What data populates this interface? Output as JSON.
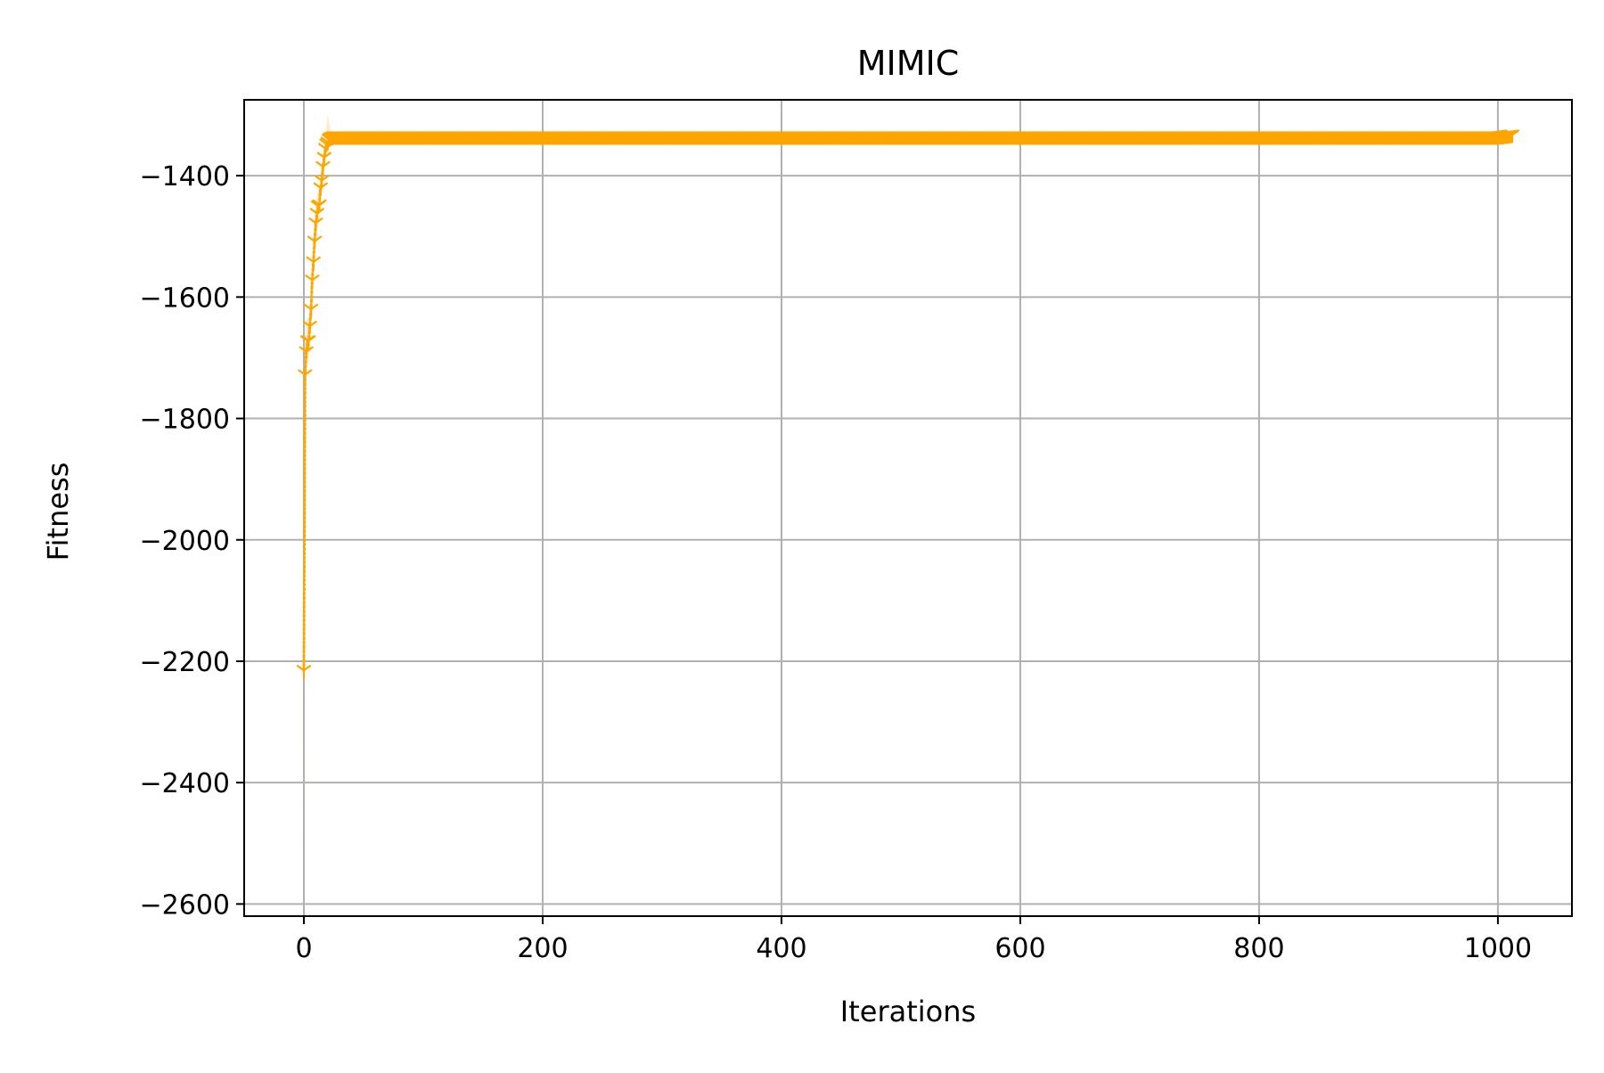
{
  "chart_data": {
    "type": "line",
    "title": "MIMIC",
    "xlabel": "Iterations",
    "ylabel": "Fitness",
    "xlim": [
      -50,
      1062
    ],
    "ylim": [
      -2620,
      -1275
    ],
    "xticks": [
      0,
      200,
      400,
      600,
      800,
      1000
    ],
    "yticks": [
      -2600,
      -2400,
      -2200,
      -2000,
      -1800,
      -1600,
      -1400
    ],
    "xtick_labels": [
      "0",
      "200",
      "400",
      "600",
      "800",
      "1000"
    ],
    "ytick_labels": [
      "−2600",
      "−2400",
      "−2200",
      "−2000",
      "−1800",
      "−1600",
      "−1400"
    ],
    "grid": true,
    "legend": null,
    "colors": {
      "line": "#FFA500",
      "band": "#FFA500",
      "grid": "#b0b0b0",
      "axes": "#000000"
    },
    "series": [
      {
        "marker": "tri_down",
        "linestyle": "dotted",
        "x": [
          0,
          1,
          2,
          3,
          4,
          5,
          6,
          7,
          8,
          9,
          10,
          11,
          12,
          13,
          14,
          15,
          16,
          17,
          18,
          19,
          20,
          21,
          22,
          23,
          24,
          25,
          26,
          27,
          28,
          29,
          30,
          40,
          60,
          100,
          200,
          300,
          400,
          500,
          600,
          700,
          800,
          900,
          1000,
          1012
        ],
        "y": [
          -2215,
          -1728,
          -1690,
          -1672,
          -1672,
          -1648,
          -1620,
          -1572,
          -1542,
          -1508,
          -1478,
          -1462,
          -1450,
          -1448,
          -1420,
          -1408,
          -1385,
          -1370,
          -1355,
          -1348,
          -1345,
          -1340,
          -1338,
          -1337,
          -1337,
          -1336,
          -1336,
          -1336,
          -1336,
          -1336,
          -1336,
          -1336,
          -1336,
          -1336,
          -1336,
          -1336,
          -1336,
          -1336,
          -1336,
          -1336,
          -1336,
          -1336,
          -1336,
          -1333
        ],
        "y_lower": [
          -2600,
          -1790,
          -1740,
          -1710,
          -1705,
          -1680,
          -1650,
          -1605,
          -1575,
          -1540,
          -1510,
          -1492,
          -1478,
          -1472,
          -1442,
          -1428,
          -1404,
          -1388,
          -1370,
          -1360,
          -1356,
          -1350,
          -1346,
          -1344,
          -1342,
          -1340,
          -1339,
          -1338,
          -1337,
          -1337,
          -1336,
          -1336,
          -1336,
          -1336,
          -1336,
          -1336,
          -1336,
          -1336,
          -1336,
          -1336,
          -1336,
          -1336,
          -1336,
          -1333
        ],
        "y_upper": [
          -1830,
          -1666,
          -1640,
          -1634,
          -1640,
          -1616,
          -1590,
          -1540,
          -1510,
          -1476,
          -1446,
          -1432,
          -1422,
          -1424,
          -1398,
          -1388,
          -1366,
          -1352,
          -1330,
          -1318,
          -1300,
          -1310,
          -1322,
          -1328,
          -1330,
          -1332,
          -1333,
          -1334,
          -1335,
          -1335,
          -1336,
          -1336,
          -1336,
          -1336,
          -1336,
          -1336,
          -1336,
          -1336,
          -1336,
          -1336,
          -1336,
          -1336,
          -1336,
          -1333
        ]
      }
    ]
  }
}
